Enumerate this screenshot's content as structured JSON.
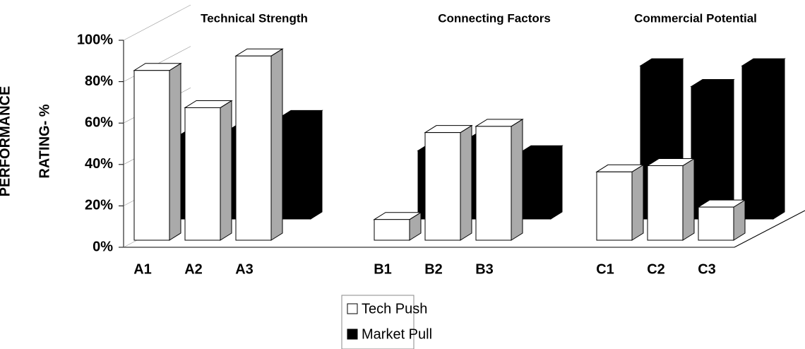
{
  "chart_data": {
    "type": "bar3d",
    "groups": [
      "Technical Strength",
      "Connecting Factors",
      "Commercial Potential"
    ],
    "categories": [
      "A1",
      "A2",
      "A3",
      "B1",
      "B2",
      "B3",
      "C1",
      "C2",
      "C3"
    ],
    "ylabel": [
      "PERFORMANCE",
      "RATING- %"
    ],
    "ylim": [
      0,
      100
    ],
    "yticks": [
      {
        "value": 0,
        "label": "0%"
      },
      {
        "value": 20,
        "label": "20%"
      },
      {
        "value": 40,
        "label": "40%"
      },
      {
        "value": 60,
        "label": "60%"
      },
      {
        "value": 80,
        "label": "80%"
      },
      {
        "value": 100,
        "label": "100%"
      }
    ],
    "series": [
      {
        "name": "Tech Push",
        "color": "#ffffff",
        "values": [
          82,
          64,
          89,
          10,
          52,
          55,
          33,
          36,
          16
        ]
      },
      {
        "name": "Market Pull",
        "color": "#000000",
        "values": [
          40,
          43,
          49,
          33,
          39,
          32,
          74,
          64,
          74
        ]
      }
    ]
  }
}
